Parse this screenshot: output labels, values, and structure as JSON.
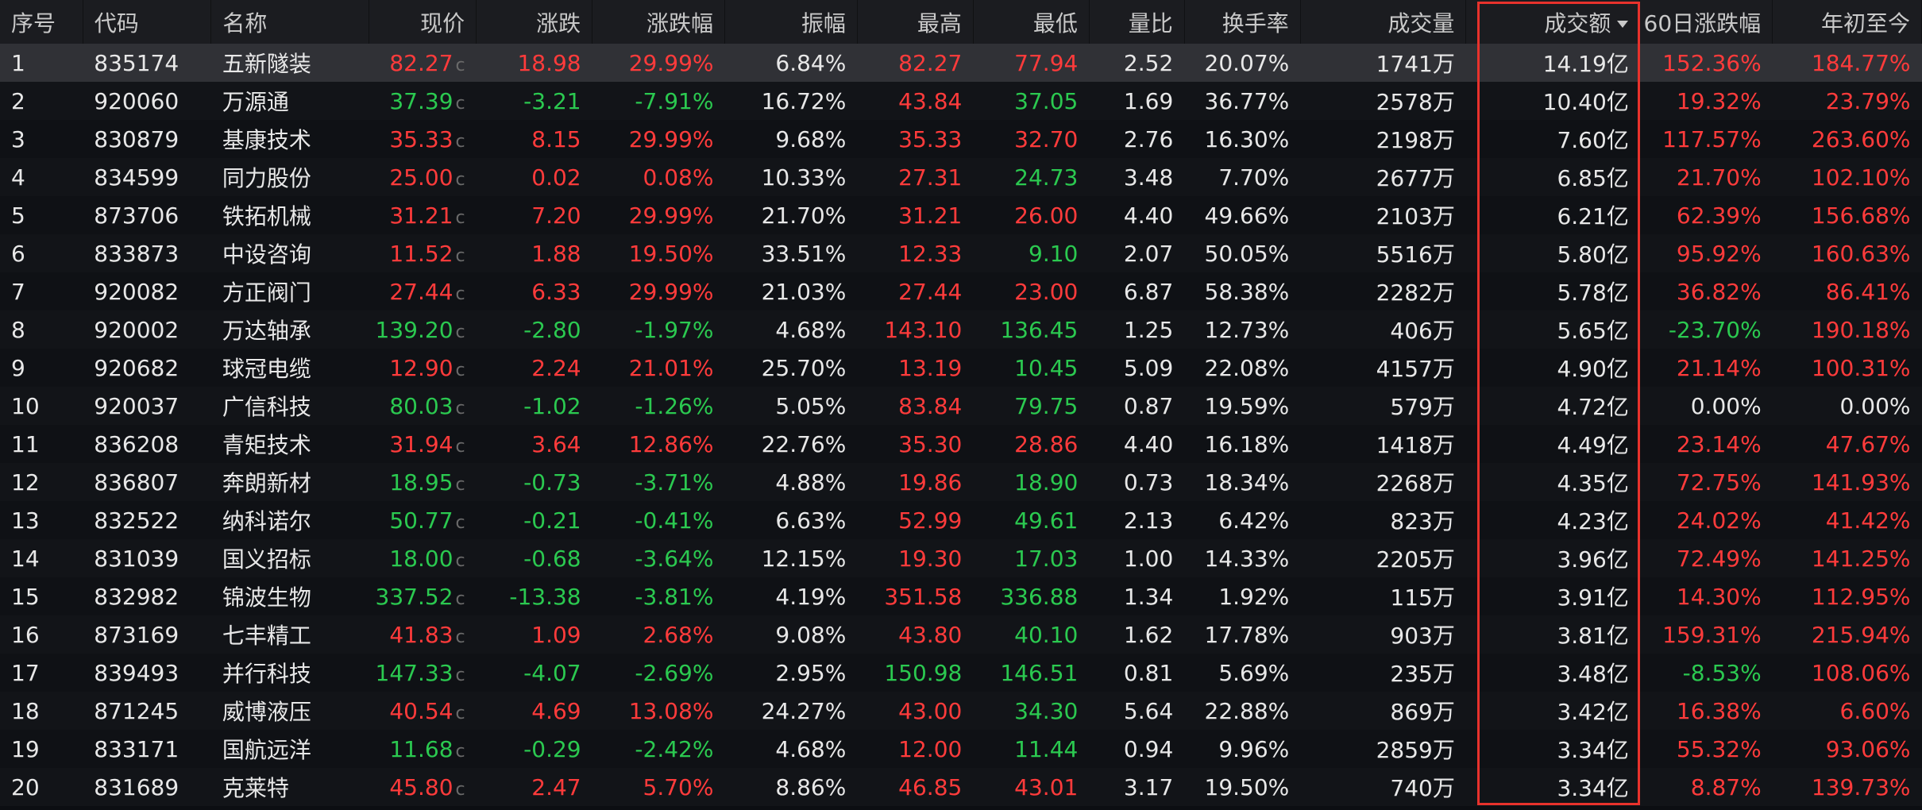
{
  "headers": {
    "seq": "序号",
    "code": "代码",
    "name": "名称",
    "price": "现价",
    "change": "涨跌",
    "pct": "涨跌幅",
    "amplitude": "振幅",
    "high": "最高",
    "low": "最低",
    "vol_ratio": "量比",
    "turnover": "换手率",
    "volume": "成交量",
    "amount": "成交额",
    "d60": "60日涨跌幅",
    "ytd": "年初至今"
  },
  "sort": {
    "column": "amount",
    "direction": "desc"
  },
  "price_flag": "c",
  "colors": {
    "up": "#ff3b3b",
    "down": "#2bc950",
    "flat": "#e8e8e8",
    "highlight": "#e8322c"
  },
  "rows": [
    {
      "seq": "1",
      "code": "835174",
      "name": "五新隧装",
      "price": "82.27",
      "change": "18.98",
      "pct": "29.99%",
      "amplitude": "6.84%",
      "high": "82.27",
      "low": "77.94",
      "vol_ratio": "2.52",
      "turnover": "20.07%",
      "volume": "1741万",
      "amount": "14.19亿",
      "d60": "152.36%",
      "ytd": "184.77%",
      "dir": "up",
      "high_dir": "up",
      "low_dir": "up",
      "d60_dir": "up",
      "ytd_dir": "up"
    },
    {
      "seq": "2",
      "code": "920060",
      "name": "万源通",
      "price": "37.39",
      "change": "-3.21",
      "pct": "-7.91%",
      "amplitude": "16.72%",
      "high": "43.84",
      "low": "37.05",
      "vol_ratio": "1.69",
      "turnover": "36.77%",
      "volume": "2578万",
      "amount": "10.40亿",
      "d60": "19.32%",
      "ytd": "23.79%",
      "dir": "down",
      "high_dir": "up",
      "low_dir": "down",
      "d60_dir": "up",
      "ytd_dir": "up"
    },
    {
      "seq": "3",
      "code": "830879",
      "name": "基康技术",
      "price": "35.33",
      "change": "8.15",
      "pct": "29.99%",
      "amplitude": "9.68%",
      "high": "35.33",
      "low": "32.70",
      "vol_ratio": "2.76",
      "turnover": "16.30%",
      "volume": "2198万",
      "amount": "7.60亿",
      "d60": "117.57%",
      "ytd": "263.60%",
      "dir": "up",
      "high_dir": "up",
      "low_dir": "up",
      "d60_dir": "up",
      "ytd_dir": "up"
    },
    {
      "seq": "4",
      "code": "834599",
      "name": "同力股份",
      "price": "25.00",
      "change": "0.02",
      "pct": "0.08%",
      "amplitude": "10.33%",
      "high": "27.31",
      "low": "24.73",
      "vol_ratio": "3.48",
      "turnover": "7.70%",
      "volume": "2677万",
      "amount": "6.85亿",
      "d60": "21.70%",
      "ytd": "102.10%",
      "dir": "up",
      "high_dir": "up",
      "low_dir": "down",
      "d60_dir": "up",
      "ytd_dir": "up"
    },
    {
      "seq": "5",
      "code": "873706",
      "name": "铁拓机械",
      "price": "31.21",
      "change": "7.20",
      "pct": "29.99%",
      "amplitude": "21.70%",
      "high": "31.21",
      "low": "26.00",
      "vol_ratio": "4.40",
      "turnover": "49.66%",
      "volume": "2103万",
      "amount": "6.21亿",
      "d60": "62.39%",
      "ytd": "156.68%",
      "dir": "up",
      "high_dir": "up",
      "low_dir": "up",
      "d60_dir": "up",
      "ytd_dir": "up"
    },
    {
      "seq": "6",
      "code": "833873",
      "name": "中设咨询",
      "price": "11.52",
      "change": "1.88",
      "pct": "19.50%",
      "amplitude": "33.51%",
      "high": "12.33",
      "low": "9.10",
      "vol_ratio": "2.07",
      "turnover": "50.05%",
      "volume": "5516万",
      "amount": "5.80亿",
      "d60": "95.92%",
      "ytd": "160.63%",
      "dir": "up",
      "high_dir": "up",
      "low_dir": "down",
      "d60_dir": "up",
      "ytd_dir": "up"
    },
    {
      "seq": "7",
      "code": "920082",
      "name": "方正阀门",
      "price": "27.44",
      "change": "6.33",
      "pct": "29.99%",
      "amplitude": "21.03%",
      "high": "27.44",
      "low": "23.00",
      "vol_ratio": "6.87",
      "turnover": "58.38%",
      "volume": "2282万",
      "amount": "5.78亿",
      "d60": "36.82%",
      "ytd": "86.41%",
      "dir": "up",
      "high_dir": "up",
      "low_dir": "up",
      "d60_dir": "up",
      "ytd_dir": "up"
    },
    {
      "seq": "8",
      "code": "920002",
      "name": "万达轴承",
      "price": "139.20",
      "change": "-2.80",
      "pct": "-1.97%",
      "amplitude": "4.68%",
      "high": "143.10",
      "low": "136.45",
      "vol_ratio": "1.25",
      "turnover": "12.73%",
      "volume": "406万",
      "amount": "5.65亿",
      "d60": "-23.70%",
      "ytd": "190.18%",
      "dir": "down",
      "high_dir": "up",
      "low_dir": "down",
      "d60_dir": "down",
      "ytd_dir": "up"
    },
    {
      "seq": "9",
      "code": "920682",
      "name": "球冠电缆",
      "price": "12.90",
      "change": "2.24",
      "pct": "21.01%",
      "amplitude": "25.70%",
      "high": "13.19",
      "low": "10.45",
      "vol_ratio": "5.09",
      "turnover": "22.08%",
      "volume": "4157万",
      "amount": "4.90亿",
      "d60": "21.14%",
      "ytd": "100.31%",
      "dir": "up",
      "high_dir": "up",
      "low_dir": "down",
      "d60_dir": "up",
      "ytd_dir": "up"
    },
    {
      "seq": "10",
      "code": "920037",
      "name": "广信科技",
      "price": "80.03",
      "change": "-1.02",
      "pct": "-1.26%",
      "amplitude": "5.05%",
      "high": "83.84",
      "low": "79.75",
      "vol_ratio": "0.87",
      "turnover": "19.59%",
      "volume": "579万",
      "amount": "4.72亿",
      "d60": "0.00%",
      "ytd": "0.00%",
      "dir": "down",
      "high_dir": "up",
      "low_dir": "down",
      "d60_dir": "flat",
      "ytd_dir": "flat"
    },
    {
      "seq": "11",
      "code": "836208",
      "name": "青矩技术",
      "price": "31.94",
      "change": "3.64",
      "pct": "12.86%",
      "amplitude": "22.76%",
      "high": "35.30",
      "low": "28.86",
      "vol_ratio": "4.40",
      "turnover": "16.18%",
      "volume": "1418万",
      "amount": "4.49亿",
      "d60": "23.14%",
      "ytd": "47.67%",
      "dir": "up",
      "high_dir": "up",
      "low_dir": "up",
      "d60_dir": "up",
      "ytd_dir": "up"
    },
    {
      "seq": "12",
      "code": "836807",
      "name": "奔朗新材",
      "price": "18.95",
      "change": "-0.73",
      "pct": "-3.71%",
      "amplitude": "4.88%",
      "high": "19.86",
      "low": "18.90",
      "vol_ratio": "0.73",
      "turnover": "18.34%",
      "volume": "2268万",
      "amount": "4.35亿",
      "d60": "72.75%",
      "ytd": "141.93%",
      "dir": "down",
      "high_dir": "up",
      "low_dir": "down",
      "d60_dir": "up",
      "ytd_dir": "up"
    },
    {
      "seq": "13",
      "code": "832522",
      "name": "纳科诺尔",
      "price": "50.77",
      "change": "-0.21",
      "pct": "-0.41%",
      "amplitude": "6.63%",
      "high": "52.99",
      "low": "49.61",
      "vol_ratio": "2.13",
      "turnover": "6.42%",
      "volume": "823万",
      "amount": "4.23亿",
      "d60": "24.02%",
      "ytd": "41.42%",
      "dir": "down",
      "high_dir": "up",
      "low_dir": "down",
      "d60_dir": "up",
      "ytd_dir": "up"
    },
    {
      "seq": "14",
      "code": "831039",
      "name": "国义招标",
      "price": "18.00",
      "change": "-0.68",
      "pct": "-3.64%",
      "amplitude": "12.15%",
      "high": "19.30",
      "low": "17.03",
      "vol_ratio": "1.00",
      "turnover": "14.33%",
      "volume": "2205万",
      "amount": "3.96亿",
      "d60": "72.49%",
      "ytd": "141.25%",
      "dir": "down",
      "high_dir": "up",
      "low_dir": "down",
      "d60_dir": "up",
      "ytd_dir": "up"
    },
    {
      "seq": "15",
      "code": "832982",
      "name": "锦波生物",
      "price": "337.52",
      "change": "-13.38",
      "pct": "-3.81%",
      "amplitude": "4.19%",
      "high": "351.58",
      "low": "336.88",
      "vol_ratio": "1.34",
      "turnover": "1.92%",
      "volume": "115万",
      "amount": "3.91亿",
      "d60": "14.30%",
      "ytd": "112.95%",
      "dir": "down",
      "high_dir": "up",
      "low_dir": "down",
      "d60_dir": "up",
      "ytd_dir": "up"
    },
    {
      "seq": "16",
      "code": "873169",
      "name": "七丰精工",
      "price": "41.83",
      "change": "1.09",
      "pct": "2.68%",
      "amplitude": "9.08%",
      "high": "43.80",
      "low": "40.10",
      "vol_ratio": "1.62",
      "turnover": "17.78%",
      "volume": "903万",
      "amount": "3.81亿",
      "d60": "159.31%",
      "ytd": "215.94%",
      "dir": "up",
      "high_dir": "up",
      "low_dir": "down",
      "d60_dir": "up",
      "ytd_dir": "up"
    },
    {
      "seq": "17",
      "code": "839493",
      "name": "并行科技",
      "price": "147.33",
      "change": "-4.07",
      "pct": "-2.69%",
      "amplitude": "2.95%",
      "high": "150.98",
      "low": "146.51",
      "vol_ratio": "0.81",
      "turnover": "5.69%",
      "volume": "235万",
      "amount": "3.48亿",
      "d60": "-8.53%",
      "ytd": "108.06%",
      "dir": "down",
      "high_dir": "down",
      "low_dir": "down",
      "d60_dir": "down",
      "ytd_dir": "up"
    },
    {
      "seq": "18",
      "code": "871245",
      "name": "威博液压",
      "price": "40.54",
      "change": "4.69",
      "pct": "13.08%",
      "amplitude": "24.27%",
      "high": "43.00",
      "low": "34.30",
      "vol_ratio": "5.64",
      "turnover": "22.88%",
      "volume": "869万",
      "amount": "3.42亿",
      "d60": "16.38%",
      "ytd": "6.60%",
      "dir": "up",
      "high_dir": "up",
      "low_dir": "down",
      "d60_dir": "up",
      "ytd_dir": "up"
    },
    {
      "seq": "19",
      "code": "833171",
      "name": "国航远洋",
      "price": "11.68",
      "change": "-0.29",
      "pct": "-2.42%",
      "amplitude": "4.68%",
      "high": "12.00",
      "low": "11.44",
      "vol_ratio": "0.94",
      "turnover": "9.96%",
      "volume": "2859万",
      "amount": "3.34亿",
      "d60": "55.32%",
      "ytd": "93.06%",
      "dir": "down",
      "high_dir": "up",
      "low_dir": "down",
      "d60_dir": "up",
      "ytd_dir": "up"
    },
    {
      "seq": "20",
      "code": "831689",
      "name": "克莱特",
      "price": "45.80",
      "change": "2.47",
      "pct": "5.70%",
      "amplitude": "8.86%",
      "high": "46.85",
      "low": "43.01",
      "vol_ratio": "3.17",
      "turnover": "19.50%",
      "volume": "740万",
      "amount": "3.34亿",
      "d60": "8.87%",
      "ytd": "139.73%",
      "dir": "up",
      "high_dir": "up",
      "low_dir": "up",
      "d60_dir": "up",
      "ytd_dir": "up"
    }
  ]
}
